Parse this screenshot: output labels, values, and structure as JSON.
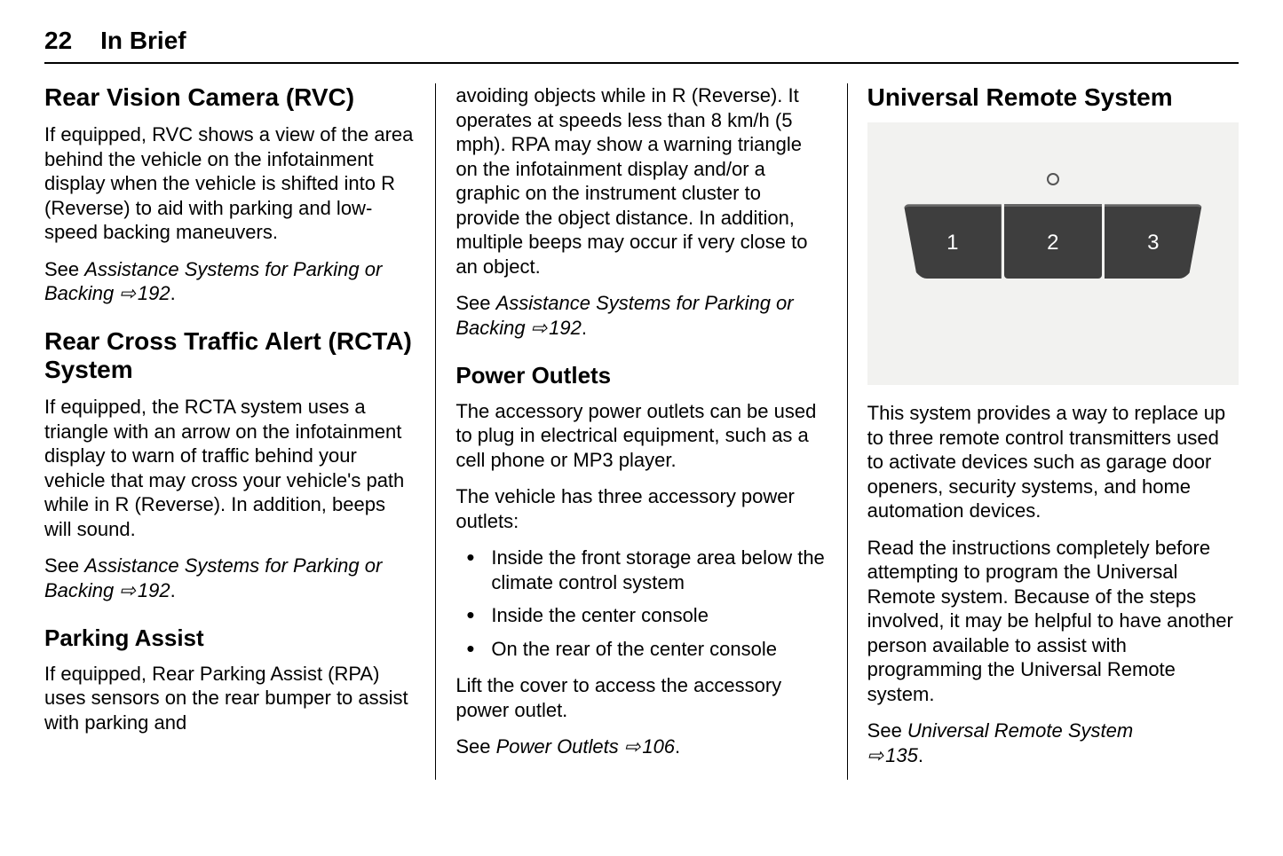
{
  "header": {
    "page_number": "22",
    "section": "In Brief"
  },
  "col1": {
    "rvc": {
      "title": "Rear Vision Camera (RVC)",
      "body": "If equipped, RVC shows a view of the area behind the vehicle on the infotainment display when the vehicle is shifted into R (Reverse) to aid with parking and low-speed backing maneuvers.",
      "ref_prefix": "See ",
      "ref_italic": "Assistance Systems for Parking or Backing",
      "ref_arrow": "⇨",
      "ref_page": "192",
      "ref_dot": "."
    },
    "rcta": {
      "title": "Rear Cross Traffic Alert (RCTA) System",
      "body": "If equipped, the RCTA system uses a triangle with an arrow on the infotainment display to warn of traffic behind your vehicle that may cross your vehicle's path while in R (Reverse). In addition, beeps will sound.",
      "ref_prefix": "See ",
      "ref_italic": "Assistance Systems for Parking or Backing",
      "ref_arrow": "⇨",
      "ref_page": "192",
      "ref_dot": "."
    },
    "pa": {
      "title": "Parking Assist",
      "body": "If equipped, Rear Parking Assist (RPA) uses sensors on the rear bumper to assist with parking and"
    }
  },
  "col2": {
    "cont": {
      "body": "avoiding objects while in R (Reverse). It operates at speeds less than 8 km/h (5 mph). RPA may show a warning triangle on the infotainment display and/or a graphic on the instrument cluster to provide the object distance. In addition, multiple beeps may occur if very close to an object.",
      "ref_prefix": "See ",
      "ref_italic": "Assistance Systems for Parking or Backing",
      "ref_arrow": "⇨",
      "ref_page": "192",
      "ref_dot": "."
    },
    "po": {
      "title": "Power Outlets",
      "intro": "The accessory power outlets can be used to plug in electrical equipment, such as a cell phone or MP3 player.",
      "listintro": "The vehicle has three accessory power outlets:",
      "items": [
        "Inside the front storage area below the climate control system",
        "Inside the center console",
        "On the rear of the center console"
      ],
      "tail": "Lift the cover to access the accessory power outlet.",
      "ref_prefix": "See ",
      "ref_italic": "Power Outlets",
      "ref_arrow": "⇨",
      "ref_page": "106",
      "ref_dot": "."
    }
  },
  "col3": {
    "urs": {
      "title": "Universal Remote System",
      "figure": {
        "btn1": "1",
        "btn2": "2",
        "btn3": "3",
        "background_color": "#f2f2f0",
        "button_color": "#3e3e3e",
        "button_text_color": "#ffffff"
      },
      "p1": "This system provides a way to replace up to three remote control transmitters used to activate devices such as garage door openers, security systems, and home automation devices.",
      "p2": "Read the instructions completely before attempting to program the Universal Remote system. Because of the steps involved, it may be helpful to have another person available to assist with programming the Universal Remote system.",
      "ref_prefix": "See ",
      "ref_italic": "Universal Remote System",
      "ref_arrow": "⇨",
      "ref_page": "135",
      "ref_dot": "."
    }
  }
}
